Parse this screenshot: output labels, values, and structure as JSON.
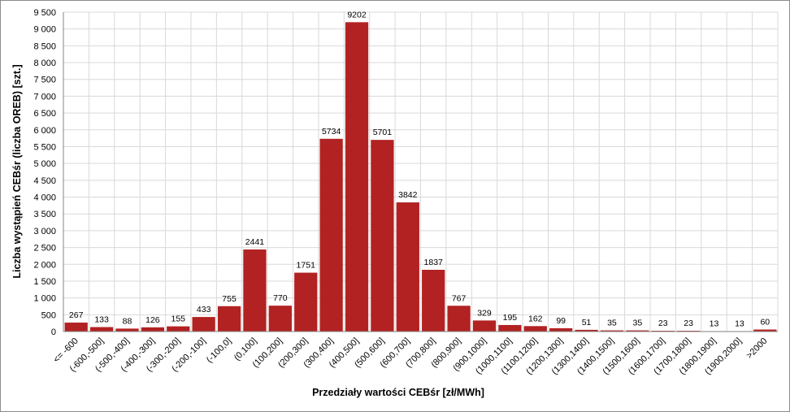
{
  "chart_data": {
    "type": "bar",
    "title": "",
    "xlabel": "Przedziały wartości CEBśr  [zł/MWh]",
    "ylabel": "Liczba wystąpień CEBśr  (liczba OREB)  [szt.]",
    "ylim": [
      0,
      9500
    ],
    "ytick_step": 500,
    "ytick_labels": [
      "0",
      "500",
      "1 000",
      "1 500",
      "2 000",
      "2 500",
      "3 000",
      "3 500",
      "4 000",
      "4 500",
      "5 000",
      "5 500",
      "6 000",
      "6 500",
      "7 000",
      "7 500",
      "8 000",
      "8 500",
      "9 000",
      "9 500"
    ],
    "grid": true,
    "legend": "none",
    "bar_color": "#b22222",
    "categories": [
      "<= -600",
      "(-600,-500]",
      "(-500,-400]",
      "(-400,-300]",
      "(-300,-200]",
      "(-200,-100]",
      "(-100,0]",
      "(0,100]",
      "(100,200]",
      "(200,300]",
      "(300,400]",
      "(400,500]",
      "(500,600]",
      "(600,700]",
      "(700,800]",
      "(800,900]",
      "(900,1000]",
      "(1000,1100]",
      "(1100,1200]",
      "(1200,1300]",
      "(1300,1400]",
      "(1400,1500]",
      "(1500,1600]",
      "(1600,1700]",
      "(1700,1800]",
      "(1800,1900]",
      "(1900,2000]",
      ">2000"
    ],
    "values": [
      267,
      133,
      88,
      126,
      155,
      433,
      755,
      2441,
      770,
      1751,
      5734,
      9202,
      5701,
      3842,
      1837,
      767,
      329,
      195,
      162,
      99,
      51,
      35,
      35,
      23,
      23,
      13,
      13,
      60
    ]
  }
}
